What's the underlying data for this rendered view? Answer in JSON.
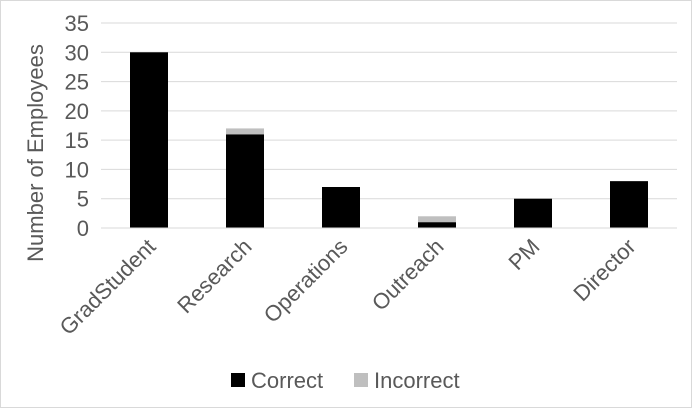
{
  "chart_data": {
    "type": "bar",
    "stacked": true,
    "title": "",
    "xlabel": "",
    "ylabel": "Number of Employees",
    "ylim": [
      0,
      35
    ],
    "yticks": [
      0,
      5,
      10,
      15,
      20,
      25,
      30,
      35
    ],
    "grid": true,
    "legend_position": "bottom",
    "categories": [
      "GradStudent",
      "Research",
      "Operations",
      "Outreach",
      "PM",
      "Director"
    ],
    "series": [
      {
        "name": "Correct",
        "color": "#000000",
        "values": [
          30,
          16,
          7,
          1,
          5,
          8
        ]
      },
      {
        "name": "Incorrect",
        "color": "#bfbfbf",
        "values": [
          0,
          1,
          0,
          1,
          0,
          0
        ]
      }
    ]
  }
}
